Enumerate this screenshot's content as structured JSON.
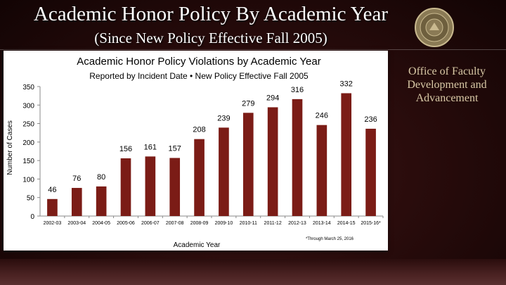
{
  "slide": {
    "title": "Academic Honor Policy By Academic Year",
    "subtitle": "(Since New Policy Effective Fall 2005)",
    "office": {
      "line1": "Office of Faculty",
      "line2": "Development and",
      "line3": "Advancement"
    },
    "colors": {
      "background": "#2a0c0c",
      "bar": "#7b1c16",
      "office_text": "#d9c9a6"
    }
  },
  "chart_data": {
    "type": "bar",
    "title": "Academic Honor Policy Violations by Academic Year",
    "subtitle": "Reported by Incident Date • New Policy Effective Fall 2005",
    "xlabel": "Academic Year",
    "ylabel": "Number of Cases",
    "footnote": "*Through March 25, 2016",
    "categories": [
      "2002-03",
      "2003-04",
      "2004-05",
      "2005-06",
      "2006-07",
      "2007-08",
      "2008-09",
      "2009-10",
      "2010-11",
      "2011-12",
      "2012-13",
      "2013-14",
      "2014-15",
      "2015-16*"
    ],
    "values": [
      46,
      76,
      80,
      156,
      161,
      157,
      208,
      239,
      279,
      294,
      316,
      246,
      332,
      236
    ],
    "ylim": [
      0,
      350
    ],
    "yticks": [
      0,
      50,
      100,
      150,
      200,
      250,
      300,
      350
    ],
    "grid": false,
    "legend": "none"
  }
}
